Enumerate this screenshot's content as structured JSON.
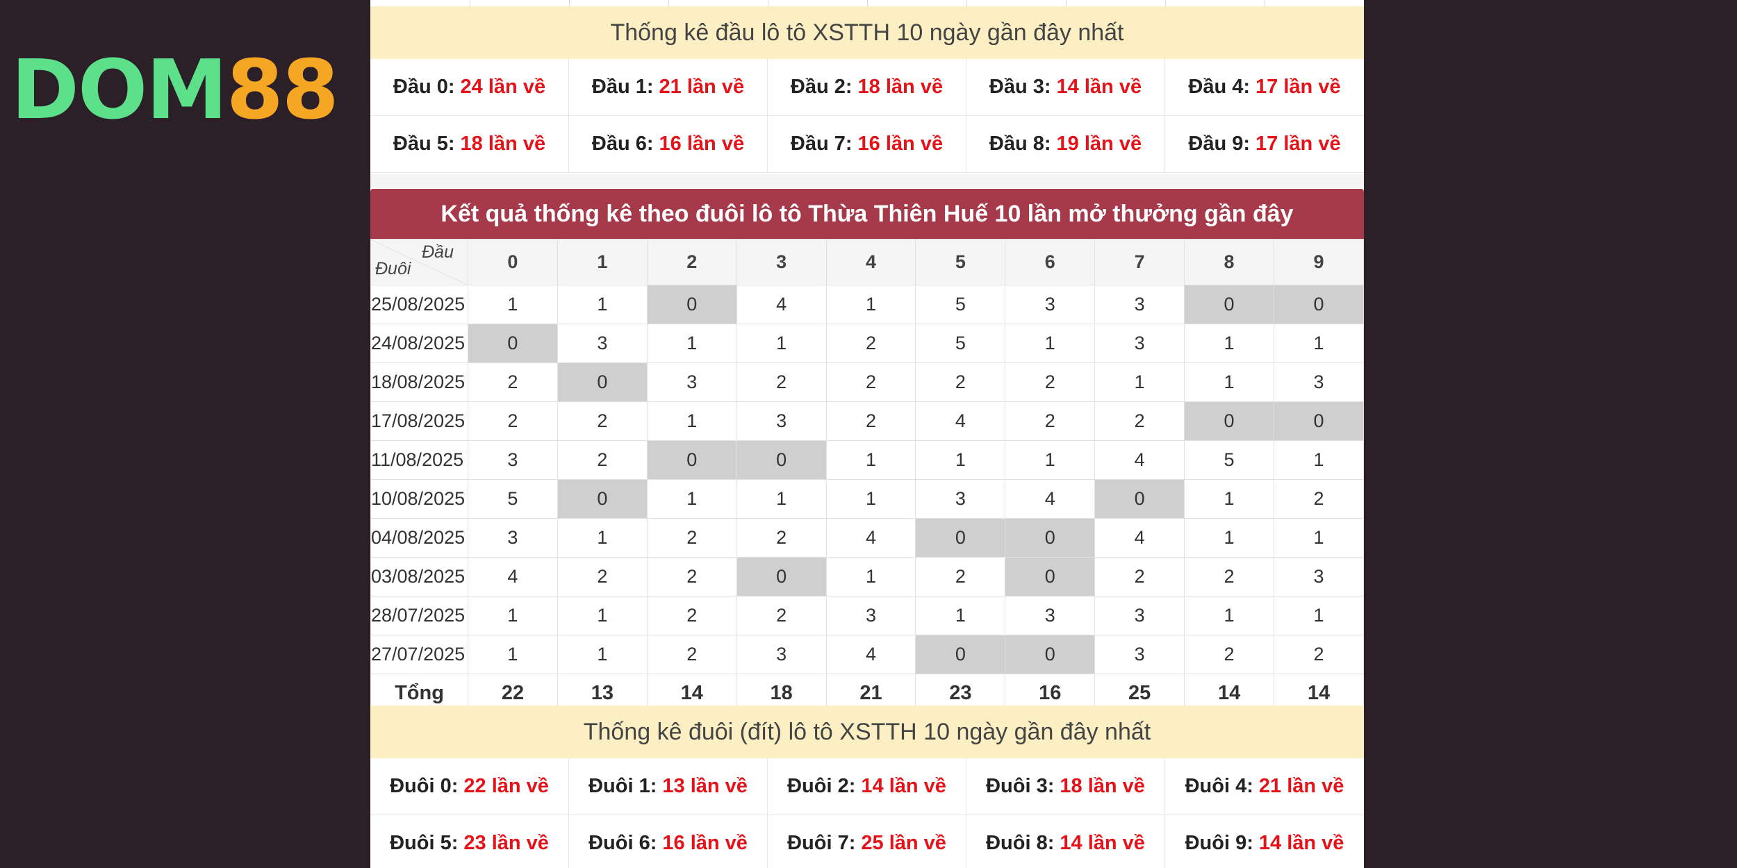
{
  "logo": {
    "part1": "DOM",
    "part2": "88"
  },
  "dau_stats": {
    "title": "Thống kê đầu lô tô XSTTH 10 ngày gần đây nhất",
    "items": [
      {
        "label": "Đầu 0:",
        "value": "24 lần về"
      },
      {
        "label": "Đầu 1:",
        "value": "21 lần về"
      },
      {
        "label": "Đầu 2:",
        "value": "18 lần về"
      },
      {
        "label": "Đầu 3:",
        "value": "14 lần về"
      },
      {
        "label": "Đầu 4:",
        "value": "17 lần về"
      },
      {
        "label": "Đầu 5:",
        "value": "18 lần về"
      },
      {
        "label": "Đầu 6:",
        "value": "16 lần về"
      },
      {
        "label": "Đầu 7:",
        "value": "16 lần về"
      },
      {
        "label": "Đầu 8:",
        "value": "19 lần về"
      },
      {
        "label": "Đầu 9:",
        "value": "17 lần về"
      }
    ]
  },
  "results_table": {
    "title": "Kết quả thống kê theo đuôi lô tô Thừa Thiên Huế 10 lần mở thưởng gần đây",
    "corner_top": "Đầu",
    "corner_bottom": "Đuôi",
    "columns": [
      "0",
      "1",
      "2",
      "3",
      "4",
      "5",
      "6",
      "7",
      "8",
      "9"
    ],
    "rows": [
      {
        "date": "25/08/2025",
        "values": [
          "1",
          "1",
          "0",
          "4",
          "1",
          "5",
          "3",
          "3",
          "0",
          "0"
        ]
      },
      {
        "date": "24/08/2025",
        "values": [
          "0",
          "3",
          "1",
          "1",
          "2",
          "5",
          "1",
          "3",
          "1",
          "1"
        ]
      },
      {
        "date": "18/08/2025",
        "values": [
          "2",
          "0",
          "3",
          "2",
          "2",
          "2",
          "2",
          "1",
          "1",
          "3"
        ]
      },
      {
        "date": "17/08/2025",
        "values": [
          "2",
          "2",
          "1",
          "3",
          "2",
          "4",
          "2",
          "2",
          "0",
          "0"
        ]
      },
      {
        "date": "11/08/2025",
        "values": [
          "3",
          "2",
          "0",
          "0",
          "1",
          "1",
          "1",
          "4",
          "5",
          "1"
        ]
      },
      {
        "date": "10/08/2025",
        "values": [
          "5",
          "0",
          "1",
          "1",
          "1",
          "3",
          "4",
          "0",
          "1",
          "2"
        ]
      },
      {
        "date": "04/08/2025",
        "values": [
          "3",
          "1",
          "2",
          "2",
          "4",
          "0",
          "0",
          "4",
          "1",
          "1"
        ]
      },
      {
        "date": "03/08/2025",
        "values": [
          "4",
          "2",
          "2",
          "0",
          "1",
          "2",
          "0",
          "2",
          "2",
          "3"
        ]
      },
      {
        "date": "28/07/2025",
        "values": [
          "1",
          "1",
          "2",
          "2",
          "3",
          "1",
          "3",
          "3",
          "1",
          "1"
        ]
      },
      {
        "date": "27/07/2025",
        "values": [
          "1",
          "1",
          "2",
          "3",
          "4",
          "0",
          "0",
          "3",
          "2",
          "2"
        ]
      }
    ],
    "total_label": "Tổng",
    "totals": [
      "22",
      "13",
      "14",
      "18",
      "21",
      "23",
      "16",
      "25",
      "14",
      "14"
    ]
  },
  "duoi_stats": {
    "title": "Thống kê đuôi (đít) lô tô XSTTH 10 ngày gần đây nhất",
    "items": [
      {
        "label": "Đuôi 0:",
        "value": "22 lần về"
      },
      {
        "label": "Đuôi 1:",
        "value": "13 lần về"
      },
      {
        "label": "Đuôi 2:",
        "value": "14 lần về"
      },
      {
        "label": "Đuôi 3:",
        "value": "18 lần về"
      },
      {
        "label": "Đuôi 4:",
        "value": "21 lần về"
      },
      {
        "label": "Đuôi 5:",
        "value": "23 lần về"
      },
      {
        "label": "Đuôi 6:",
        "value": "16 lần về"
      },
      {
        "label": "Đuôi 7:",
        "value": "25 lần về"
      },
      {
        "label": "Đuôi 8:",
        "value": "14 lần về"
      },
      {
        "label": "Đuôi 9:",
        "value": "14 lần về"
      }
    ]
  }
}
